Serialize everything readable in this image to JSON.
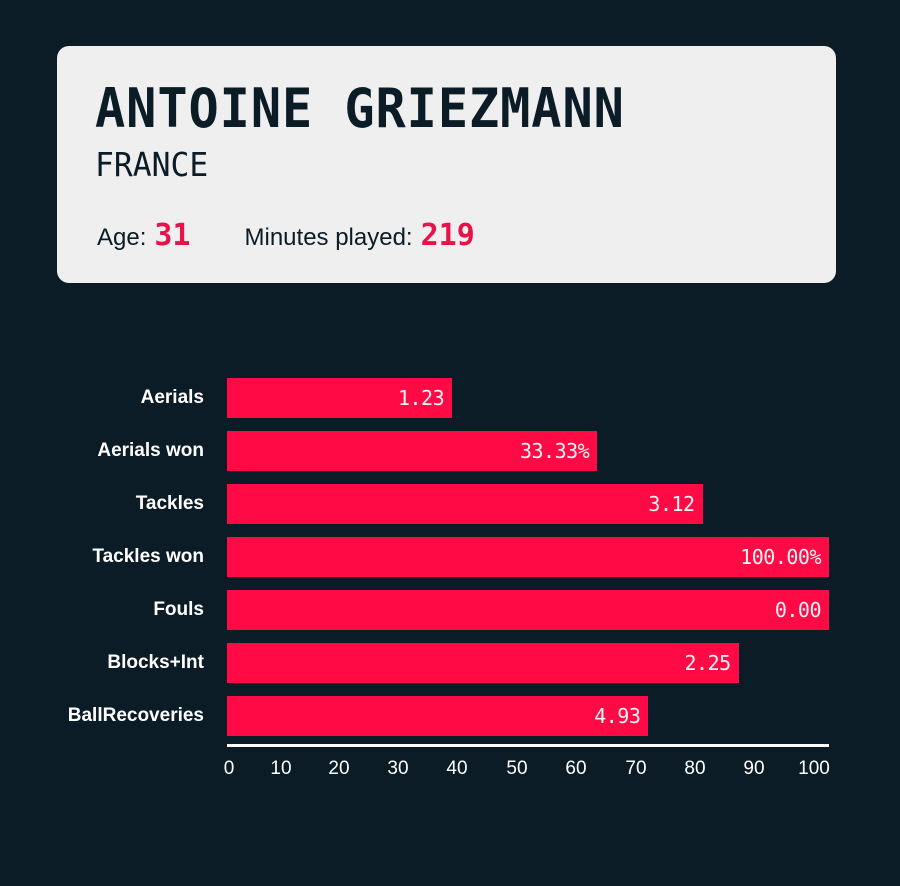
{
  "header": {
    "player_name": "ANTOINE GRIEZMANN",
    "country": "FRANCE",
    "age_label": "Age:",
    "age_value": "31",
    "minutes_label": "Minutes played:",
    "minutes_value": "219"
  },
  "colors": {
    "background": "#0b1c27",
    "card": "#efefef",
    "accent": "#ff0a45",
    "highlight_text": "#e8124b"
  },
  "chart_data": {
    "type": "bar",
    "orientation": "horizontal",
    "title": "",
    "xlabel": "",
    "ylabel": "",
    "xlim": [
      0,
      100
    ],
    "grid": false,
    "legend": null,
    "x_ticks": [
      "0",
      "10",
      "20",
      "30",
      "40",
      "50",
      "60",
      "70",
      "80",
      "90",
      "100"
    ],
    "categories": [
      "Aerials",
      "Aerials won",
      "Tackles",
      "Tackles won",
      "Fouls",
      "Blocks+Int",
      "BallRecoveries"
    ],
    "values": [
      37.4,
      61.5,
      79.0,
      100,
      100,
      85.0,
      70.0
    ],
    "value_labels": [
      "1.23",
      "33.33%",
      "3.12",
      "100.00%",
      "0.00",
      "2.25",
      "4.93"
    ]
  }
}
